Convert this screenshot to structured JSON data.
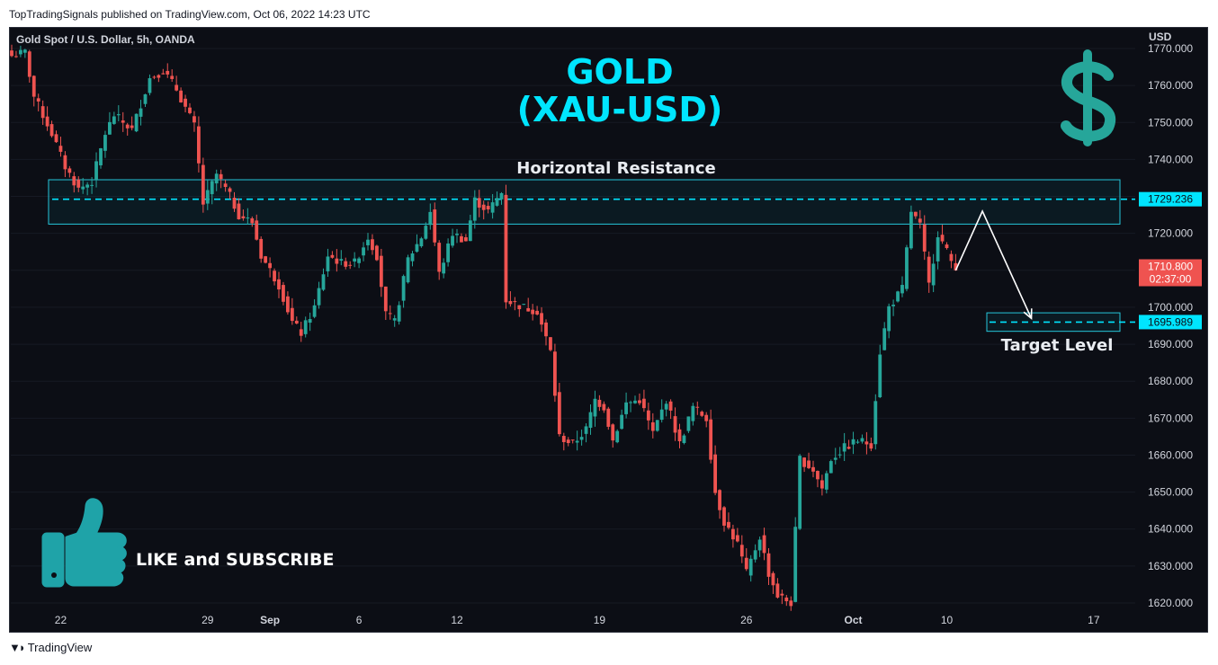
{
  "header": {
    "published": "TopTradingSignals published on TradingView.com, Oct 06, 2022 14:23 UTC"
  },
  "chart_info": {
    "symbol": "Gold Spot / U.S. Dollar, 5h, OANDA",
    "currency": "USD"
  },
  "title": {
    "line1": "GOLD",
    "line2": "(XAU-USD)"
  },
  "dollar_icon": "dollar-sign-icon",
  "annotations": {
    "resistance_label": "Horizontal Resistance",
    "target_label": "Target Level",
    "like_text": "LIKE and SUBSCRIBE"
  },
  "price_tags": {
    "resistance": "1729.236",
    "target": "1695.989",
    "last": "1710.800",
    "countdown": "02:37:00"
  },
  "footer": {
    "brand": "TradingView"
  },
  "colors": {
    "up": "#26a69a",
    "down": "#ef5350",
    "accent": "#00e5ff",
    "background": "#0c0e15",
    "axis_text": "#d1d4dc"
  },
  "chart_data": {
    "type": "candlestick",
    "title": "",
    "xlabel": "",
    "ylabel": "USD",
    "ylim": [
      1618,
      1773
    ],
    "y_ticks": [
      1620,
      1630,
      1640,
      1650,
      1660,
      1670,
      1680,
      1690,
      1700,
      1710,
      1720,
      1730,
      1740,
      1750,
      1760,
      1770
    ],
    "y_tick_labels": [
      "1620.000",
      "1630.000",
      "1640.000",
      "1650.000",
      "1660.000",
      "1670.000",
      "1680.000",
      "1690.000",
      "1700.000",
      "1710.000",
      "1720.000",
      "1730.000",
      "1740.000",
      "1750.000",
      "1760.000",
      "1770.000"
    ],
    "x_ticks": [
      {
        "label": "22",
        "bar": 11
      },
      {
        "label": "29",
        "bar": 44
      },
      {
        "label": "Sep",
        "bar": 58
      },
      {
        "label": "6",
        "bar": 78
      },
      {
        "label": "12",
        "bar": 100
      },
      {
        "label": "19",
        "bar": 132
      },
      {
        "label": "26",
        "bar": 165
      },
      {
        "label": "Oct",
        "bar": 189
      },
      {
        "label": "10",
        "bar": 210
      },
      {
        "label": "17",
        "bar": 243
      }
    ],
    "resistance_zone": [
      1722.5,
      1734.5
    ],
    "resistance_level": 1729.236,
    "target_zone": [
      1693.5,
      1698.5
    ],
    "target_level": 1695.989,
    "last_price": 1710.8,
    "projection": [
      [
        218,
        1726
      ],
      [
        229,
        1697
      ]
    ],
    "anchors": [
      [
        0,
        1768
      ],
      [
        3,
        1769
      ],
      [
        5,
        1757
      ],
      [
        9,
        1747
      ],
      [
        12,
        1738
      ],
      [
        15,
        1732
      ],
      [
        18,
        1734
      ],
      [
        21,
        1747
      ],
      [
        23,
        1752
      ],
      [
        27,
        1748
      ],
      [
        31,
        1762
      ],
      [
        34,
        1764
      ],
      [
        37,
        1759
      ],
      [
        41,
        1749
      ],
      [
        43,
        1728
      ],
      [
        46,
        1736
      ],
      [
        49,
        1730
      ],
      [
        51,
        1725
      ],
      [
        54,
        1723
      ],
      [
        56,
        1714
      ],
      [
        60,
        1706
      ],
      [
        63,
        1696
      ],
      [
        65,
        1693
      ],
      [
        68,
        1700
      ],
      [
        71,
        1714
      ],
      [
        74,
        1712
      ],
      [
        77,
        1712
      ],
      [
        80,
        1719
      ],
      [
        82,
        1714
      ],
      [
        84,
        1698
      ],
      [
        86,
        1696
      ],
      [
        89,
        1713
      ],
      [
        92,
        1719
      ],
      [
        94,
        1726
      ],
      [
        96,
        1709
      ],
      [
        99,
        1720
      ],
      [
        102,
        1718
      ],
      [
        104,
        1729
      ],
      [
        107,
        1726
      ],
      [
        110,
        1731
      ],
      [
        111,
        1702
      ],
      [
        115,
        1700
      ],
      [
        118,
        1699
      ],
      [
        121,
        1688
      ],
      [
        123,
        1665
      ],
      [
        126,
        1663
      ],
      [
        129,
        1667
      ],
      [
        131,
        1675
      ],
      [
        133,
        1673
      ],
      [
        135,
        1664
      ],
      [
        138,
        1674
      ],
      [
        141,
        1675
      ],
      [
        144,
        1666
      ],
      [
        147,
        1675
      ],
      [
        150,
        1663
      ],
      [
        153,
        1673
      ],
      [
        156,
        1670
      ],
      [
        158,
        1650
      ],
      [
        160,
        1642
      ],
      [
        163,
        1636
      ],
      [
        165,
        1628
      ],
      [
        168,
        1638
      ],
      [
        170,
        1628
      ],
      [
        172,
        1622
      ],
      [
        175,
        1620
      ],
      [
        177,
        1659
      ],
      [
        180,
        1656
      ],
      [
        182,
        1651
      ],
      [
        184,
        1659
      ],
      [
        187,
        1662
      ],
      [
        190,
        1664
      ],
      [
        193,
        1663
      ],
      [
        195,
        1688
      ],
      [
        197,
        1700
      ],
      [
        200,
        1705
      ],
      [
        202,
        1726
      ],
      [
        204,
        1722
      ],
      [
        206,
        1706
      ],
      [
        208,
        1720
      ],
      [
        210,
        1715
      ],
      [
        212,
        1710
      ]
    ]
  }
}
